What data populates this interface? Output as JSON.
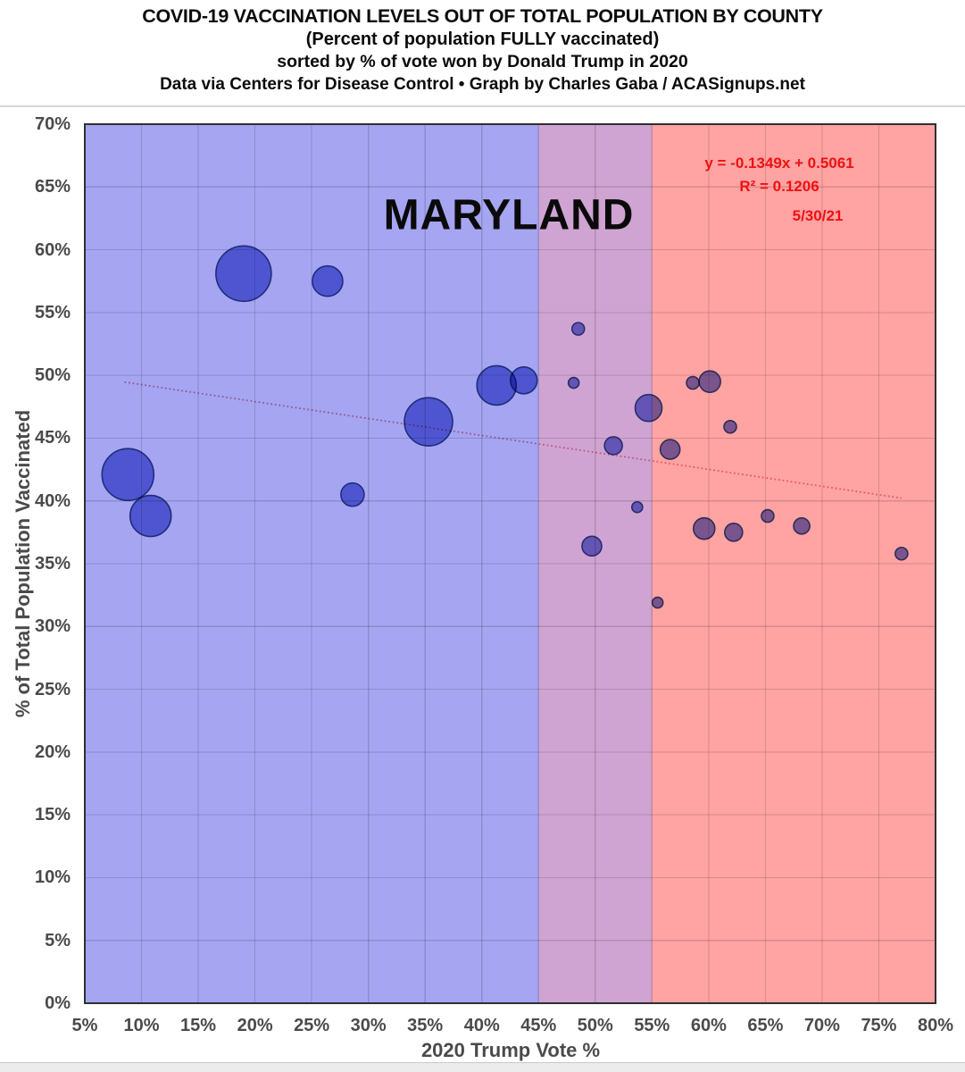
{
  "header": {
    "title": "COVID-19 VACCINATION LEVELS OUT OF TOTAL POPULATION BY COUNTY",
    "subtitle1": "(Percent of population FULLY vaccinated)",
    "subtitle2": "sorted by % of vote won by Donald Trump in 2020",
    "subtitle3": "Data via Centers for Disease Control • Graph by Charles Gaba / ACASignups.net"
  },
  "annotations": {
    "state_label": "MARYLAND",
    "equation": "y = -0.1349x + 0.5061",
    "r_squared": "R² = 0.1206",
    "date": "5/30/21",
    "annotation_color": "#ee1111"
  },
  "chart_data": {
    "type": "scatter",
    "title": "COVID-19 VACCINATION LEVELS OUT OF TOTAL POPULATION BY COUNTY",
    "xlabel": "2020 Trump Vote %",
    "ylabel": "% of Total Population Vaccinated",
    "xlim": [
      5,
      80
    ],
    "ylim": [
      0,
      70
    ],
    "x_tick_labels": [
      "5%",
      "10%",
      "15%",
      "20%",
      "25%",
      "30%",
      "35%",
      "40%",
      "45%",
      "50%",
      "55%",
      "60%",
      "65%",
      "70%",
      "75%",
      "80%"
    ],
    "y_tick_labels": [
      "0%",
      "5%",
      "10%",
      "15%",
      "20%",
      "25%",
      "30%",
      "35%",
      "40%",
      "45%",
      "50%",
      "55%",
      "60%",
      "65%",
      "70%"
    ],
    "grid": true,
    "legend": "none",
    "zones": [
      {
        "name": "zone-blue-lean",
        "x_from": 5,
        "x_to": 45,
        "color": "#a5a5f2"
      },
      {
        "name": "zone-swing",
        "x_from": 45,
        "x_to": 55,
        "color": "#d0a4d2"
      },
      {
        "name": "zone-red-lean",
        "x_from": 55,
        "x_to": 80,
        "color": "#ffa3a3"
      }
    ],
    "trendline": {
      "x1": 8.5,
      "y1": 49.46,
      "x2": 77.0,
      "y2": 40.22,
      "slope": -0.1349,
      "intercept": 0.5061
    },
    "bubble_color": "#737cda",
    "bubble_stroke": "#304681",
    "trend_color": "#e8889a",
    "grid_color": "rgba(0,0,0,0.15)",
    "border_color": "#2f2f2f",
    "points_meaning": "x = 2020 Trump vote share %, y = % of total population fully vaccinated, r = bubble radius in px (proportional to county population)",
    "points": [
      {
        "x": 19.0,
        "y": 58.1,
        "r": 31
      },
      {
        "x": 8.8,
        "y": 42.1,
        "r": 29
      },
      {
        "x": 35.3,
        "y": 46.3,
        "r": 27
      },
      {
        "x": 10.8,
        "y": 38.8,
        "r": 23
      },
      {
        "x": 41.3,
        "y": 49.2,
        "r": 22
      },
      {
        "x": 26.4,
        "y": 57.5,
        "r": 17
      },
      {
        "x": 43.7,
        "y": 49.6,
        "r": 15
      },
      {
        "x": 54.7,
        "y": 47.4,
        "r": 15
      },
      {
        "x": 28.6,
        "y": 40.5,
        "r": 13
      },
      {
        "x": 60.1,
        "y": 49.5,
        "r": 12
      },
      {
        "x": 59.6,
        "y": 37.8,
        "r": 12
      },
      {
        "x": 49.7,
        "y": 36.4,
        "r": 11
      },
      {
        "x": 56.6,
        "y": 44.1,
        "r": 11
      },
      {
        "x": 51.6,
        "y": 44.4,
        "r": 10
      },
      {
        "x": 62.2,
        "y": 37.5,
        "r": 10
      },
      {
        "x": 68.2,
        "y": 38.0,
        "r": 9
      },
      {
        "x": 48.5,
        "y": 53.7,
        "r": 7
      },
      {
        "x": 58.6,
        "y": 49.4,
        "r": 7
      },
      {
        "x": 61.9,
        "y": 45.9,
        "r": 7
      },
      {
        "x": 65.2,
        "y": 38.8,
        "r": 7
      },
      {
        "x": 77.0,
        "y": 35.8,
        "r": 7
      },
      {
        "x": 48.1,
        "y": 49.4,
        "r": 6
      },
      {
        "x": 53.7,
        "y": 39.5,
        "r": 6
      },
      {
        "x": 55.5,
        "y": 31.9,
        "r": 6
      }
    ]
  }
}
